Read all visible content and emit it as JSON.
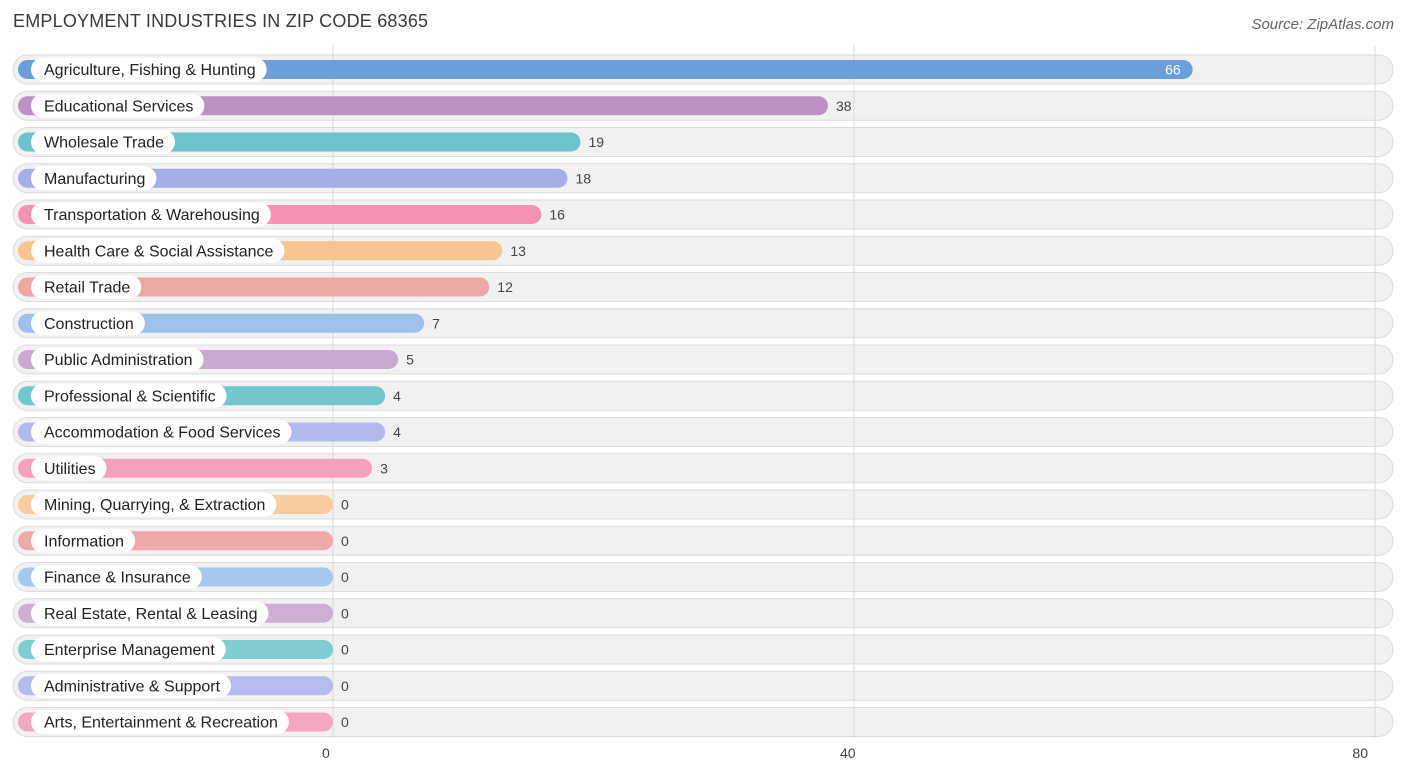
{
  "header": {
    "title": "EMPLOYMENT INDUSTRIES IN ZIP CODE 68365",
    "source": "Source: ZipAtlas.com"
  },
  "chart_data": {
    "type": "bar",
    "orientation": "horizontal",
    "title": "EMPLOYMENT INDUSTRIES IN ZIP CODE 68365",
    "xlim": [
      0,
      80
    ],
    "x_ticks": [
      0,
      40,
      80
    ],
    "grid": true,
    "categories": [
      "Agriculture, Fishing & Hunting",
      "Educational Services",
      "Wholesale Trade",
      "Manufacturing",
      "Transportation & Warehousing",
      "Health Care & Social Assistance",
      "Retail Trade",
      "Construction",
      "Public Administration",
      "Professional & Scientific",
      "Accommodation & Food Services",
      "Utilities",
      "Mining, Quarrying, & Extraction",
      "Information",
      "Finance & Insurance",
      "Real Estate, Rental & Leasing",
      "Enterprise Management",
      "Administrative & Support",
      "Arts, Entertainment & Recreation"
    ],
    "values": [
      66,
      38,
      19,
      18,
      16,
      13,
      12,
      7,
      5,
      4,
      4,
      3,
      0,
      0,
      0,
      0,
      0,
      0,
      0
    ],
    "colors": [
      "#6a9fdc",
      "#bb92c2",
      "#6cc3cc",
      "#a6aee8",
      "#f592b4",
      "#f8c48f",
      "#eda8a4",
      "#9dc1ea",
      "#c9a9d0",
      "#72c7cc",
      "#b2b9ec",
      "#f5a1be",
      "#f8cc9f",
      "#f0a9a9",
      "#a6c8ee",
      "#cfaed6",
      "#7fcdd1",
      "#b5bbef",
      "#f5a6c2"
    ]
  }
}
